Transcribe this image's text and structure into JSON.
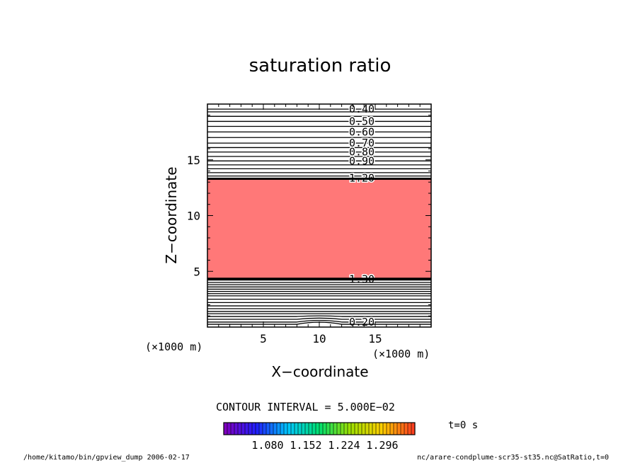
{
  "header": {
    "title": "saturation ratio"
  },
  "axes": {
    "xlabel": "X−coordinate",
    "ylabel": "Z−coordinate",
    "x_unit": "(×1000 m)",
    "y_unit": "(×1000 m)",
    "x_ticks": [
      "5",
      "10",
      "15"
    ],
    "y_ticks": [
      "5",
      "10",
      "15"
    ]
  },
  "info": {
    "contour_interval": "CONTOUR INTERVAL = 5.000E−02",
    "time": "t=0 s"
  },
  "colorbar": {
    "labels": [
      "1.080",
      "1.152",
      "1.224",
      "1.296"
    ],
    "colors": [
      "#8000c0",
      "#2020ff",
      "#00c8ff",
      "#00e070",
      "#a0e000",
      "#ffd000",
      "#ff4020"
    ]
  },
  "footer": {
    "left": "/home/kitamo/bin/gpview_dump  2006-02-17",
    "right": "nc/arare-condplume-scr35-st35.nc@SatRatio,t=0"
  },
  "chart_data": {
    "type": "contour",
    "title": "saturation ratio",
    "xlabel": "X−coordinate",
    "ylabel": "Z−coordinate",
    "x_unit": "(×1000 m)",
    "y_unit": "(×1000 m)",
    "xlim": [
      0,
      20
    ],
    "ylim": [
      0,
      20
    ],
    "contour_interval": 0.05,
    "shaded_region": {
      "z_min": 4.3,
      "z_max": 13.3,
      "color": "#ff7878"
    },
    "upper_contours": [
      {
        "z": 19.55,
        "value": 0.4,
        "label": "0.40"
      },
      {
        "z": 19.3,
        "value": 0.45
      },
      {
        "z": 18.9,
        "value": 0.45
      },
      {
        "z": 18.45,
        "value": 0.5,
        "label": "0.50"
      },
      {
        "z": 18.0,
        "value": 0.55
      },
      {
        "z": 17.5,
        "value": 0.6,
        "label": "0.60"
      },
      {
        "z": 17.0,
        "value": 0.65
      },
      {
        "z": 16.5,
        "value": 0.7,
        "label": "0.70"
      },
      {
        "z": 16.1,
        "value": 0.75
      },
      {
        "z": 15.7,
        "value": 0.8,
        "label": "0.80"
      },
      {
        "z": 15.3,
        "value": 0.85
      },
      {
        "z": 14.9,
        "value": 0.9,
        "label": "0.90"
      },
      {
        "z": 14.55,
        "value": 0.95
      },
      {
        "z": 14.2,
        "value": 1.0
      },
      {
        "z": 13.85,
        "value": 1.05
      },
      {
        "z": 13.55,
        "value": 1.1
      },
      {
        "z": 13.35,
        "value": 1.2,
        "label": "1.20"
      }
    ],
    "lower_contours": [
      {
        "z": 4.3,
        "value": 1.3,
        "label": "1.30"
      },
      {
        "z": 4.0,
        "value": 1.2
      },
      {
        "z": 3.8,
        "value": 1.1
      },
      {
        "z": 3.6,
        "value": 1.0
      },
      {
        "z": 3.4,
        "value": 0.9
      },
      {
        "z": 3.2,
        "value": 0.85
      },
      {
        "z": 3.0,
        "value": 0.8
      },
      {
        "z": 2.8,
        "value": 0.7
      },
      {
        "z": 2.5,
        "value": 0.6
      },
      {
        "z": 2.2,
        "value": 0.55
      },
      {
        "z": 1.9,
        "value": 0.5
      },
      {
        "z": 1.65,
        "value": 0.45
      },
      {
        "z": 1.4,
        "value": 0.4
      },
      {
        "z": 1.2,
        "value": 0.35
      },
      {
        "z": 0.95,
        "value": 0.3
      },
      {
        "z": 0.7,
        "value": 0.25
      },
      {
        "z": 0.45,
        "value": 0.2,
        "label": "0.20"
      },
      {
        "z": 0.25,
        "value": 0.15
      }
    ],
    "colorbar_labels": [
      "1.080",
      "1.152",
      "1.224",
      "1.296"
    ]
  }
}
